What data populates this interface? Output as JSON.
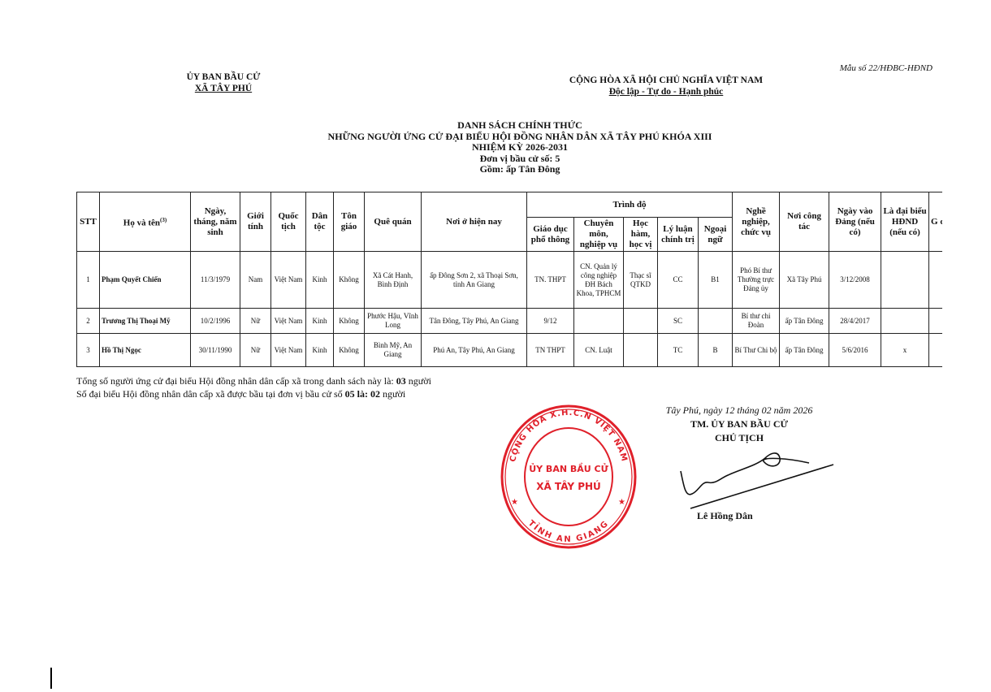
{
  "header": {
    "org_line1": "ỦY BAN BẦU CỬ",
    "org_line2": "XÃ TÂY PHÚ",
    "form_number": "Mẫu số 22/HĐBC-HĐND",
    "country": "CỘNG HÒA XÃ HỘI CHỦ NGHĨA VIỆT NAM",
    "motto": "Độc lập - Tự do - Hạnh phúc"
  },
  "title": {
    "line1": "DANH SÁCH CHÍNH THỨC",
    "line2": "NHỮNG NGƯỜI ỨNG CỬ ĐẠI BIỂU HỘI ĐỒNG NHÂN DÂN XÃ TÂY PHÚ KHÓA XIII",
    "line3": "NHIỆM KỲ 2026-2031",
    "line4": "Đơn vị bầu cử số: 5",
    "line5": "Gồm: ấp Tân Đông"
  },
  "table": {
    "headers": {
      "stt": "STT",
      "name": "Họ và tên",
      "name_sup": "(3)",
      "dob": "Ngày, tháng, năm sinh",
      "gender": "Giới tính",
      "nationality": "Quốc tịch",
      "ethnicity": "Dân tộc",
      "religion": "Tôn giáo",
      "hometown": "Quê quán",
      "residence": "Nơi ở hiện nay",
      "education_group": "Trình độ",
      "general_edu": "Giáo dục phổ thông",
      "professional": "Chuyên môn, nghiệp vụ",
      "academic": "Học hàm, học vị",
      "political": "Lý luận chính trị",
      "language": "Ngoại ngữ",
      "occupation": "Nghề nghiệp, chức vụ",
      "workplace": "Nơi công tác",
      "party_date": "Ngày vào Đảng (nếu có)",
      "is_delegate": "Là đại biểu HĐND (nếu có)",
      "cut_col": "G cl"
    },
    "rows": [
      {
        "stt": "1",
        "name": "Phạm Quyết Chiến",
        "dob": "11/3/1979",
        "gender": "Nam",
        "nationality": "Việt Nam",
        "ethnicity": "Kinh",
        "religion": "Không",
        "hometown": "Xã Cát Hanh, Bình Định",
        "residence": "ấp Đông Sơn 2, xã Thoại Sơn, tỉnh An Giang",
        "general_edu": "TN. THPT",
        "professional": "CN. Quản lý công nghiệp ĐH Bách Khoa, TPHCM",
        "academic": "Thạc sĩ QTKD",
        "political": "CC",
        "language": "B1",
        "occupation": "Phó Bí thư Thường trực Đảng ủy",
        "workplace": "Xã Tây Phú",
        "party_date": "3/12/2008",
        "is_delegate": ""
      },
      {
        "stt": "2",
        "name": "Trương Thị Thoại Mỹ",
        "dob": "10/2/1996",
        "gender": "Nữ",
        "nationality": "Việt Nam",
        "ethnicity": "Kinh",
        "religion": "Không",
        "hometown": "Phước Hậu, Vĩnh Long",
        "residence": "Tân Đông, Tây Phú, An Giang",
        "general_edu": "9/12",
        "professional": "",
        "academic": "",
        "political": "SC",
        "language": "",
        "occupation": "Bí thư chi Đoàn",
        "workplace": "ấp Tân Đông",
        "party_date": "28/4/2017",
        "is_delegate": ""
      },
      {
        "stt": "3",
        "name": "Hồ Thị Ngọc",
        "dob": "30/11/1990",
        "gender": "Nữ",
        "nationality": "Việt Nam",
        "ethnicity": "Kinh",
        "religion": "Không",
        "hometown": "Bình Mỹ, An Giang",
        "residence": "Phú An, Tây Phú, An Giang",
        "general_edu": "TN THPT",
        "professional": "CN. Luật",
        "academic": "",
        "political": "TC",
        "language": "B",
        "occupation": "Bí Thư Chi bộ",
        "workplace": "ấp Tân Đông",
        "party_date": "5/6/2016",
        "is_delegate": "x"
      }
    ]
  },
  "summary": {
    "line1_text": "Tổng số người ứng cử đại biểu Hội đồng nhân dân cấp xã trong danh sách này là: ",
    "line1_count": "03",
    "line1_unit": " người",
    "line2_text": "Số đại biểu Hội đồng nhân dân cấp xã được bầu tại đơn vị bầu cử số ",
    "line2_unit_no": "05",
    "line2_mid": " là: ",
    "line2_count": "02",
    "line2_unit": " người"
  },
  "signature": {
    "place_date": "Tây Phú, ngày 12 tháng 02 năm 2026",
    "on_behalf": "TM. ỦY BAN BẦU CỬ",
    "position": "CHỦ TỊCH",
    "signer": "Lê Hồng Dân"
  },
  "stamp": {
    "outer_text": "CỘNG HÒA X.H.C.N VIỆT NAM",
    "bottom_text": "TỈNH AN GIANG",
    "inner_line1": "ỦY BAN BẦU CỬ",
    "inner_line2": "XÃ TÂY PHÚ",
    "color": "#e0202a"
  }
}
